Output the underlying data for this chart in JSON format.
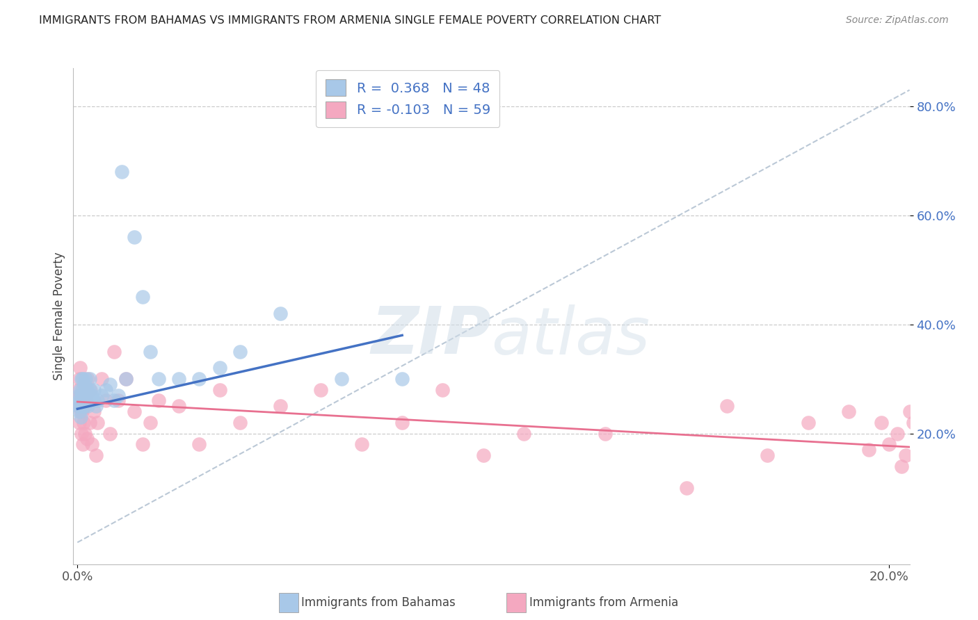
{
  "title": "IMMIGRANTS FROM BAHAMAS VS IMMIGRANTS FROM ARMENIA SINGLE FEMALE POVERTY CORRELATION CHART",
  "source": "Source: ZipAtlas.com",
  "ylabel": "Single Female Poverty",
  "xlim": [
    -0.001,
    0.205
  ],
  "ylim": [
    -0.04,
    0.87
  ],
  "ytick_vals": [
    0.2,
    0.4,
    0.6,
    0.8
  ],
  "ytick_labels": [
    "20.0%",
    "40.0%",
    "60.0%",
    "80.0%"
  ],
  "xtick_vals": [
    0.0,
    0.2
  ],
  "xtick_labels": [
    "0.0%",
    "20.0%"
  ],
  "legend_label1": "Immigrants from Bahamas",
  "legend_label2": "Immigrants from Armenia",
  "R1": "0.368",
  "N1": "48",
  "R2": "-0.103",
  "N2": "59",
  "color1": "#a8c8e8",
  "color2": "#f4a8c0",
  "line1_color": "#4472c4",
  "line2_color": "#e87090",
  "bahamas_x": [
    0.0002,
    0.0003,
    0.0004,
    0.0005,
    0.0006,
    0.0007,
    0.0008,
    0.0009,
    0.001,
    0.001,
    0.0012,
    0.0013,
    0.0014,
    0.0015,
    0.0016,
    0.0017,
    0.0018,
    0.002,
    0.002,
    0.0022,
    0.0023,
    0.0025,
    0.0026,
    0.003,
    0.003,
    0.0035,
    0.004,
    0.004,
    0.0045,
    0.005,
    0.006,
    0.007,
    0.008,
    0.009,
    0.01,
    0.011,
    0.012,
    0.014,
    0.016,
    0.018,
    0.02,
    0.025,
    0.03,
    0.035,
    0.04,
    0.05,
    0.065,
    0.08
  ],
  "bahamas_y": [
    0.25,
    0.27,
    0.24,
    0.26,
    0.28,
    0.25,
    0.23,
    0.27,
    0.3,
    0.26,
    0.28,
    0.25,
    0.3,
    0.27,
    0.29,
    0.26,
    0.25,
    0.28,
    0.3,
    0.26,
    0.28,
    0.25,
    0.27,
    0.28,
    0.3,
    0.27,
    0.26,
    0.28,
    0.25,
    0.26,
    0.27,
    0.28,
    0.29,
    0.26,
    0.27,
    0.68,
    0.3,
    0.56,
    0.45,
    0.35,
    0.3,
    0.3,
    0.3,
    0.32,
    0.35,
    0.42,
    0.3,
    0.3
  ],
  "armenia_x": [
    0.0002,
    0.0003,
    0.0004,
    0.0005,
    0.0006,
    0.0007,
    0.0008,
    0.0009,
    0.001,
    0.0012,
    0.0014,
    0.0015,
    0.0016,
    0.0018,
    0.002,
    0.0022,
    0.0024,
    0.0026,
    0.003,
    0.0032,
    0.0035,
    0.004,
    0.0045,
    0.005,
    0.006,
    0.007,
    0.008,
    0.009,
    0.01,
    0.012,
    0.014,
    0.016,
    0.018,
    0.02,
    0.025,
    0.03,
    0.035,
    0.04,
    0.05,
    0.06,
    0.07,
    0.08,
    0.09,
    0.1,
    0.11,
    0.13,
    0.15,
    0.16,
    0.17,
    0.18,
    0.19,
    0.195,
    0.198,
    0.2,
    0.202,
    0.203,
    0.204,
    0.205,
    0.206
  ],
  "armenia_y": [
    0.28,
    0.25,
    0.3,
    0.22,
    0.27,
    0.32,
    0.24,
    0.2,
    0.26,
    0.24,
    0.18,
    0.22,
    0.25,
    0.2,
    0.28,
    0.26,
    0.19,
    0.3,
    0.22,
    0.28,
    0.18,
    0.24,
    0.16,
    0.22,
    0.3,
    0.26,
    0.2,
    0.35,
    0.26,
    0.3,
    0.24,
    0.18,
    0.22,
    0.26,
    0.25,
    0.18,
    0.28,
    0.22,
    0.25,
    0.28,
    0.18,
    0.22,
    0.28,
    0.16,
    0.2,
    0.2,
    0.1,
    0.25,
    0.16,
    0.22,
    0.24,
    0.17,
    0.22,
    0.18,
    0.2,
    0.14,
    0.16,
    0.24,
    0.22
  ],
  "diag_line_x": [
    0.0,
    0.205
  ],
  "diag_line_y": [
    0.0,
    0.83
  ],
  "reg_line1_x": [
    0.0,
    0.08
  ],
  "reg_line1_y": [
    0.245,
    0.38
  ],
  "reg_line2_x": [
    0.0,
    0.205
  ],
  "reg_line2_y": [
    0.258,
    0.175
  ]
}
